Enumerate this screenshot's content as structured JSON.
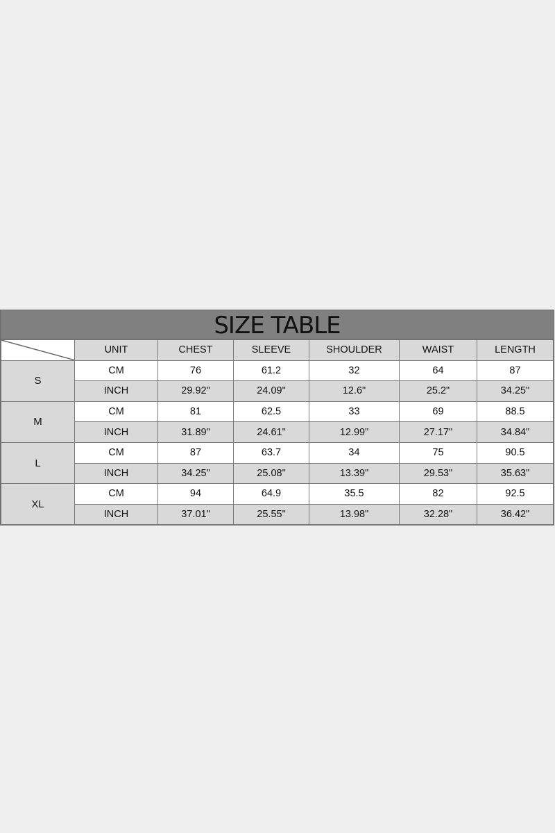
{
  "title": "SIZE TABLE",
  "headers": [
    "UNIT",
    "CHEST",
    "SLEEVE",
    "SHOULDER",
    "WAIST",
    "LENGTH"
  ],
  "rows": [
    {
      "size": "S",
      "cm": [
        "CM",
        "76",
        "61.2",
        "32",
        "64",
        "87"
      ],
      "inch": [
        "INCH",
        "29.92\"",
        "24.09\"",
        "12.6\"",
        "25.2\"",
        "34.25\""
      ]
    },
    {
      "size": "M",
      "cm": [
        "CM",
        "81",
        "62.5",
        "33",
        "69",
        "88.5"
      ],
      "inch": [
        "INCH",
        "31.89\"",
        "24.61\"",
        "12.99\"",
        "27.17\"",
        "34.84\""
      ]
    },
    {
      "size": "L",
      "cm": [
        "CM",
        "87",
        "63.7",
        "34",
        "75",
        "90.5"
      ],
      "inch": [
        "INCH",
        "34.25\"",
        "25.08\"",
        "13.39\"",
        "29.53\"",
        "35.63\""
      ]
    },
    {
      "size": "XL",
      "cm": [
        "CM",
        "94",
        "64.9",
        "35.5",
        "82",
        "92.5"
      ],
      "inch": [
        "INCH",
        "37.01\"",
        "25.55\"",
        "13.98\"",
        "32.28\"",
        "36.42\""
      ]
    }
  ],
  "colors": {
    "title_bar": "#808080",
    "header_cell": "#d9d9d9",
    "background": "#efefef"
  }
}
